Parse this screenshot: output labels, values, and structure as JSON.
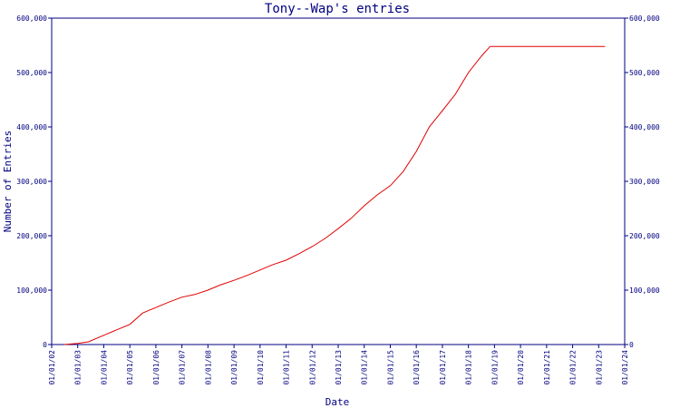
{
  "chart_data": {
    "type": "line",
    "title": "Tony--Wap's entries",
    "xlabel": "Date",
    "ylabel": "Number of Entries",
    "ylim": [
      0,
      600000
    ],
    "xlim": [
      "2002-01-01",
      "2024-01-01"
    ],
    "y_ticks": [
      0,
      100000,
      200000,
      300000,
      400000,
      500000,
      600000
    ],
    "y_tick_labels": [
      "0",
      "100,000",
      "200,000",
      "300,000",
      "400,000",
      "500,000",
      "600,000"
    ],
    "x_ticks": [
      "2002-01-01",
      "2003-01-01",
      "2004-01-01",
      "2005-01-01",
      "2006-01-01",
      "2007-01-01",
      "2008-01-01",
      "2009-01-01",
      "2010-01-01",
      "2011-01-01",
      "2012-01-01",
      "2013-01-01",
      "2014-01-01",
      "2015-01-01",
      "2016-01-01",
      "2017-01-01",
      "2018-01-01",
      "2019-01-01",
      "2020-01-01",
      "2021-01-01",
      "2022-01-01",
      "2023-01-01",
      "2024-01-01"
    ],
    "x_tick_labels": [
      "01/01/02",
      "01/01/03",
      "01/01/04",
      "01/01/05",
      "01/01/06",
      "01/01/07",
      "01/01/08",
      "01/01/09",
      "01/01/10",
      "01/01/11",
      "01/01/12",
      "01/01/13",
      "01/01/14",
      "01/01/15",
      "01/01/16",
      "01/01/17",
      "01/01/18",
      "01/01/19",
      "01/01/20",
      "01/01/21",
      "01/01/22",
      "01/01/23",
      "01/01/24"
    ],
    "right_axis": true,
    "grid": false,
    "colors": {
      "axis": "#000080",
      "line": "#e00000"
    },
    "series": [
      {
        "points": [
          [
            "2002-07-01",
            0
          ],
          [
            "2003-01-01",
            2000
          ],
          [
            "2003-06-01",
            5000
          ],
          [
            "2004-01-01",
            17000
          ],
          [
            "2004-07-01",
            27000
          ],
          [
            "2005-01-01",
            37000
          ],
          [
            "2005-07-01",
            58000
          ],
          [
            "2006-01-01",
            68000
          ],
          [
            "2006-07-01",
            78000
          ],
          [
            "2007-01-01",
            87000
          ],
          [
            "2007-07-01",
            92000
          ],
          [
            "2008-01-01",
            100000
          ],
          [
            "2008-07-01",
            110000
          ],
          [
            "2009-01-01",
            118000
          ],
          [
            "2009-07-01",
            127000
          ],
          [
            "2010-01-01",
            137000
          ],
          [
            "2010-07-01",
            147000
          ],
          [
            "2011-01-01",
            155000
          ],
          [
            "2011-07-01",
            167000
          ],
          [
            "2012-01-01",
            180000
          ],
          [
            "2012-07-01",
            195000
          ],
          [
            "2013-01-01",
            213000
          ],
          [
            "2013-07-01",
            232000
          ],
          [
            "2014-01-01",
            255000
          ],
          [
            "2014-07-01",
            275000
          ],
          [
            "2015-01-01",
            292000
          ],
          [
            "2015-07-01",
            318000
          ],
          [
            "2016-01-01",
            355000
          ],
          [
            "2016-07-01",
            400000
          ],
          [
            "2017-01-01",
            430000
          ],
          [
            "2017-07-01",
            460000
          ],
          [
            "2018-01-01",
            500000
          ],
          [
            "2018-07-01",
            530000
          ],
          [
            "2018-11-01",
            548000
          ],
          [
            "2023-04-01",
            548000
          ]
        ]
      }
    ]
  }
}
